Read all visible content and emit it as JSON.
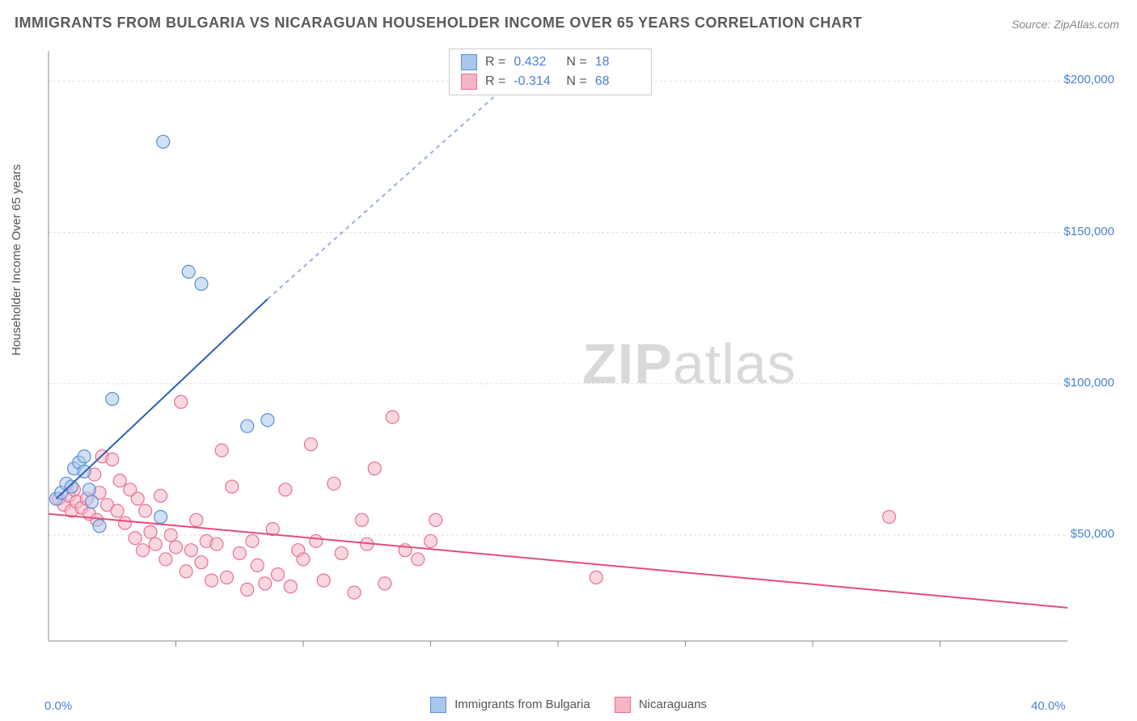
{
  "title": "IMMIGRANTS FROM BULGARIA VS NICARAGUAN HOUSEHOLDER INCOME OVER 65 YEARS CORRELATION CHART",
  "source": "Source: ZipAtlas.com",
  "ylabel": "Householder Income Over 65 years",
  "watermark_bold": "ZIP",
  "watermark_rest": "atlas",
  "chart": {
    "type": "scatter",
    "xlim": [
      0,
      40
    ],
    "ylim": [
      15000,
      210000
    ],
    "x_ticks": [
      0,
      40
    ],
    "x_tick_labels": [
      "0.0%",
      "40.0%"
    ],
    "x_minor_ticks": [
      5,
      10,
      15,
      20,
      25,
      30,
      35
    ],
    "y_ticks": [
      50000,
      100000,
      150000,
      200000
    ],
    "y_tick_labels": [
      "$50,000",
      "$100,000",
      "$150,000",
      "$200,000"
    ],
    "grid_color": "#dddddd",
    "axis_color": "#888888",
    "background_color": "#ffffff",
    "marker_radius": 8,
    "series": [
      {
        "name": "Immigrants from Bulgaria",
        "fill": "#a9c6ec",
        "stroke": "#5a8fd6",
        "fill_opacity": 0.55,
        "R": "0.432",
        "N": "18",
        "trend": {
          "solid": {
            "x1": 0.3,
            "y1": 62000,
            "x2": 8.6,
            "y2": 128000
          },
          "dashed": {
            "x1": 8.6,
            "y1": 128000,
            "x2": 19.5,
            "y2": 210000
          },
          "color": "#2f5fb3",
          "width": 2
        },
        "points": [
          {
            "x": 0.3,
            "y": 62000
          },
          {
            "x": 0.5,
            "y": 64000
          },
          {
            "x": 0.7,
            "y": 67000
          },
          {
            "x": 0.9,
            "y": 66000
          },
          {
            "x": 1.0,
            "y": 72000
          },
          {
            "x": 1.2,
            "y": 74000
          },
          {
            "x": 1.4,
            "y": 76000
          },
          {
            "x": 1.4,
            "y": 71000
          },
          {
            "x": 1.6,
            "y": 65000
          },
          {
            "x": 1.7,
            "y": 61000
          },
          {
            "x": 2.0,
            "y": 53000
          },
          {
            "x": 2.5,
            "y": 95000
          },
          {
            "x": 4.4,
            "y": 56000
          },
          {
            "x": 4.5,
            "y": 180000
          },
          {
            "x": 5.5,
            "y": 137000
          },
          {
            "x": 6.0,
            "y": 133000
          },
          {
            "x": 7.8,
            "y": 86000
          },
          {
            "x": 8.6,
            "y": 88000
          }
        ]
      },
      {
        "name": "Nicaraguans",
        "fill": "#f4b6c5",
        "stroke": "#e96f94",
        "fill_opacity": 0.55,
        "R": "-0.314",
        "N": "68",
        "trend": {
          "solid": {
            "x1": 0,
            "y1": 57000,
            "x2": 40,
            "y2": 26000
          },
          "color": "#e34d7a",
          "width": 2
        },
        "points": [
          {
            "x": 0.4,
            "y": 62000
          },
          {
            "x": 0.6,
            "y": 60000
          },
          {
            "x": 0.8,
            "y": 63000
          },
          {
            "x": 0.9,
            "y": 58000
          },
          {
            "x": 1.0,
            "y": 65000
          },
          {
            "x": 1.1,
            "y": 61000
          },
          {
            "x": 1.3,
            "y": 59000
          },
          {
            "x": 1.5,
            "y": 62000
          },
          {
            "x": 1.6,
            "y": 57000
          },
          {
            "x": 1.8,
            "y": 70000
          },
          {
            "x": 1.9,
            "y": 55000
          },
          {
            "x": 2.0,
            "y": 64000
          },
          {
            "x": 2.1,
            "y": 76000
          },
          {
            "x": 2.3,
            "y": 60000
          },
          {
            "x": 2.5,
            "y": 75000
          },
          {
            "x": 2.7,
            "y": 58000
          },
          {
            "x": 2.8,
            "y": 68000
          },
          {
            "x": 3.0,
            "y": 54000
          },
          {
            "x": 3.2,
            "y": 65000
          },
          {
            "x": 3.4,
            "y": 49000
          },
          {
            "x": 3.5,
            "y": 62000
          },
          {
            "x": 3.7,
            "y": 45000
          },
          {
            "x": 3.8,
            "y": 58000
          },
          {
            "x": 4.0,
            "y": 51000
          },
          {
            "x": 4.2,
            "y": 47000
          },
          {
            "x": 4.4,
            "y": 63000
          },
          {
            "x": 4.6,
            "y": 42000
          },
          {
            "x": 4.8,
            "y": 50000
          },
          {
            "x": 5.0,
            "y": 46000
          },
          {
            "x": 5.2,
            "y": 94000
          },
          {
            "x": 5.4,
            "y": 38000
          },
          {
            "x": 5.6,
            "y": 45000
          },
          {
            "x": 5.8,
            "y": 55000
          },
          {
            "x": 6.0,
            "y": 41000
          },
          {
            "x": 6.2,
            "y": 48000
          },
          {
            "x": 6.4,
            "y": 35000
          },
          {
            "x": 6.6,
            "y": 47000
          },
          {
            "x": 6.8,
            "y": 78000
          },
          {
            "x": 7.0,
            "y": 36000
          },
          {
            "x": 7.2,
            "y": 66000
          },
          {
            "x": 7.5,
            "y": 44000
          },
          {
            "x": 7.8,
            "y": 32000
          },
          {
            "x": 8.0,
            "y": 48000
          },
          {
            "x": 8.2,
            "y": 40000
          },
          {
            "x": 8.5,
            "y": 34000
          },
          {
            "x": 8.8,
            "y": 52000
          },
          {
            "x": 9.0,
            "y": 37000
          },
          {
            "x": 9.3,
            "y": 65000
          },
          {
            "x": 9.5,
            "y": 33000
          },
          {
            "x": 9.8,
            "y": 45000
          },
          {
            "x": 10.0,
            "y": 42000
          },
          {
            "x": 10.3,
            "y": 80000
          },
          {
            "x": 10.5,
            "y": 48000
          },
          {
            "x": 10.8,
            "y": 35000
          },
          {
            "x": 11.2,
            "y": 67000
          },
          {
            "x": 11.5,
            "y": 44000
          },
          {
            "x": 12.0,
            "y": 31000
          },
          {
            "x": 12.5,
            "y": 47000
          },
          {
            "x": 12.8,
            "y": 72000
          },
          {
            "x": 13.2,
            "y": 34000
          },
          {
            "x": 13.5,
            "y": 89000
          },
          {
            "x": 14.0,
            "y": 45000
          },
          {
            "x": 14.5,
            "y": 42000
          },
          {
            "x": 15.0,
            "y": 48000
          },
          {
            "x": 15.2,
            "y": 55000
          },
          {
            "x": 21.5,
            "y": 36000
          },
          {
            "x": 33.0,
            "y": 56000
          },
          {
            "x": 12.3,
            "y": 55000
          }
        ]
      }
    ]
  },
  "legend": {
    "series1_label": "Immigrants from Bulgaria",
    "series2_label": "Nicaraguans"
  }
}
